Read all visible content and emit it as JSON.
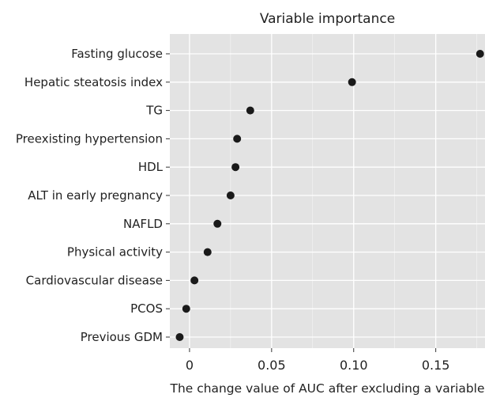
{
  "chart_data": {
    "type": "scatter",
    "title": "Variable importance",
    "xlabel": "The change value of AUC after excluding a variable",
    "ylabel": "",
    "xlim": [
      -0.012,
      0.18
    ],
    "xticks": [
      0,
      0.05,
      0.1,
      0.15
    ],
    "xtick_labels": [
      "0",
      "0.05",
      "0.10",
      "0.15"
    ],
    "grid": true,
    "categories": [
      "Fasting glucose",
      "Hepatic steatosis index",
      "TG",
      "Preexisting hypertension",
      "HDL",
      "ALT in early pregnancy",
      "NAFLD",
      "Physical activity",
      "Cardiovascular disease",
      "PCOS",
      "Previous GDM"
    ],
    "values": [
      0.177,
      0.099,
      0.037,
      0.029,
      0.028,
      0.025,
      0.017,
      0.011,
      0.003,
      -0.002,
      -0.006
    ],
    "colors": {
      "panel": "#e3e3e3",
      "grid": "#ffffff",
      "point": "#1a1a1a",
      "text": "#222222"
    }
  }
}
